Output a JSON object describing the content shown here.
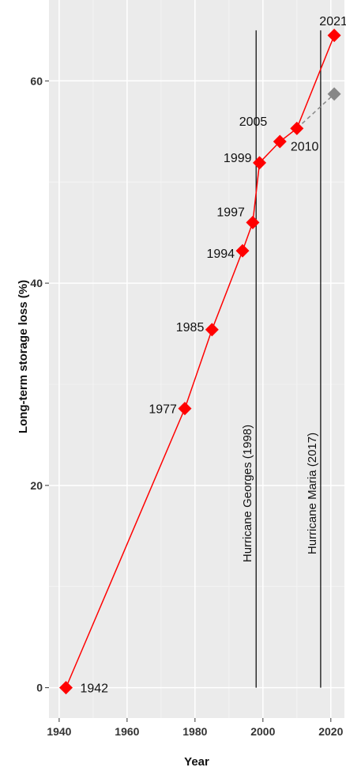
{
  "chart_data": {
    "type": "line",
    "xlabel": "Year",
    "ylabel": "Long-term storage loss (%)",
    "xlim": [
      1937,
      2024
    ],
    "ylim": [
      -3,
      68
    ],
    "x_ticks": [
      "1940",
      "1960",
      "1980",
      "2000",
      "2020"
    ],
    "y_ticks": [
      "0",
      "20",
      "40",
      "60"
    ],
    "grid": true,
    "panel_background": "#ebebeb",
    "series": [
      {
        "color": "#ff0000",
        "line_style": "solid",
        "points": [
          {
            "x": 1942,
            "y": 0,
            "label": "1942"
          },
          {
            "x": 1977,
            "y": 27.6,
            "label": "1977"
          },
          {
            "x": 1985,
            "y": 35.4,
            "label": "1985"
          },
          {
            "x": 1994,
            "y": 43.2,
            "label": "1994"
          },
          {
            "x": 1997,
            "y": 46.0,
            "label": "1997"
          },
          {
            "x": 1999,
            "y": 51.9,
            "label": "1999"
          },
          {
            "x": 2005,
            "y": 54.0,
            "label": "2005"
          },
          {
            "x": 2010,
            "y": 55.3,
            "label": "2010"
          },
          {
            "x": 2021,
            "y": 64.5,
            "label": "2021"
          }
        ]
      },
      {
        "color": "#888888",
        "line_style": "dashed",
        "points": [
          {
            "x": 2010,
            "y": 55.3
          },
          {
            "x": 2021,
            "y": 58.7
          }
        ]
      }
    ],
    "annotations": [
      {
        "x": 1998,
        "label": "Hurricane Georges (1998)"
      },
      {
        "x": 2017,
        "label": "Hurricane Maria (2017)"
      }
    ]
  }
}
